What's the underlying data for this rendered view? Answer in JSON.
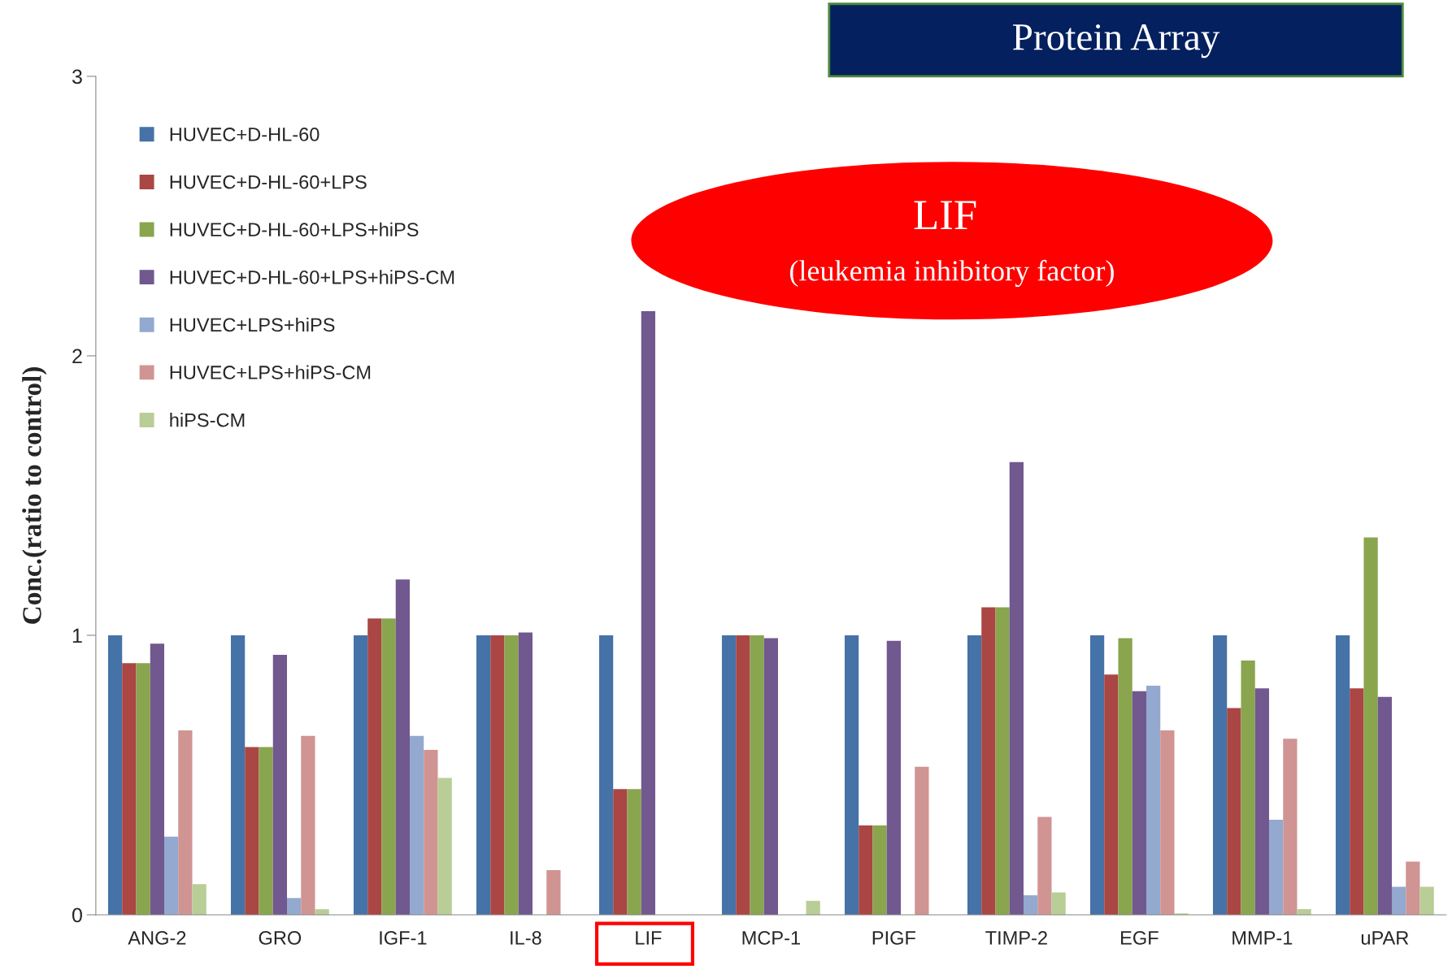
{
  "chart_data": {
    "type": "bar",
    "ylabel": "Conc.(ratio to control)",
    "categories": [
      "ANG-2",
      "GRO",
      "IGF-1",
      "IL-8",
      "LIF",
      "MCP-1",
      "PIGF",
      "TIMP-2",
      "EGF",
      "MMP-1",
      "uPAR"
    ],
    "series": [
      {
        "name": "HUVEC+D-HL-60",
        "color": "#4572a7",
        "values": [
          1.0,
          1.0,
          1.0,
          1.0,
          1.0,
          1.0,
          1.0,
          1.0,
          1.0,
          1.0,
          1.0
        ]
      },
      {
        "name": "HUVEC+D-HL-60+LPS",
        "color": "#aa4643",
        "values": [
          0.9,
          0.6,
          1.06,
          1.0,
          0.45,
          1.0,
          0.32,
          1.1,
          0.86,
          0.74,
          0.81
        ]
      },
      {
        "name": "HUVEC+D-HL-60+LPS+hiPS",
        "color": "#89a54e",
        "values": [
          0.9,
          0.6,
          1.06,
          1.0,
          0.45,
          1.0,
          0.32,
          1.1,
          0.99,
          0.91,
          1.35
        ]
      },
      {
        "name": "HUVEC+D-HL-60+LPS+hiPS-CM",
        "color": "#71588f",
        "values": [
          0.97,
          0.93,
          1.2,
          1.01,
          2.16,
          0.99,
          0.98,
          1.62,
          0.8,
          0.81,
          0.78
        ]
      },
      {
        "name": "HUVEC+LPS+hiPS",
        "color": "#93a9cf",
        "values": [
          0.28,
          0.06,
          0.64,
          null,
          null,
          null,
          null,
          0.07,
          0.82,
          0.34,
          0.1
        ]
      },
      {
        "name": "HUVEC+LPS+hiPS-CM",
        "color": "#d09493",
        "values": [
          0.66,
          0.64,
          0.59,
          0.16,
          null,
          null,
          0.53,
          0.35,
          0.66,
          0.63,
          0.19
        ]
      },
      {
        "name": "hiPS-CM",
        "color": "#b9cd96",
        "values": [
          0.11,
          0.02,
          0.49,
          null,
          null,
          0.05,
          null,
          0.08,
          0.005,
          0.02,
          0.1
        ]
      }
    ],
    "ylim": [
      0,
      3
    ],
    "yticks": [
      0,
      1,
      2,
      3
    ],
    "grid": false,
    "legend": "top left",
    "annotations": [
      "Protein Array",
      "LIF",
      "(leukemia inhibitory factor)"
    ]
  }
}
